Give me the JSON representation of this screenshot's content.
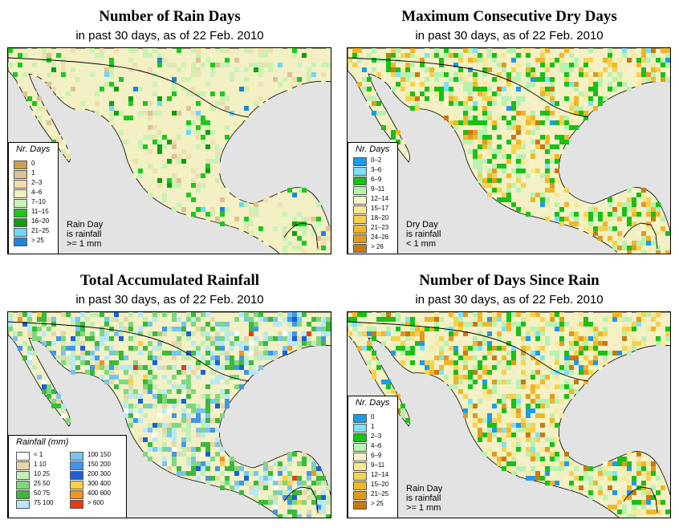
{
  "colors": {
    "background": "#e3e3e3",
    "land_base": "#f2f0c4",
    "border": "#000000"
  },
  "panels": [
    {
      "title": "Number of Rain Days",
      "subtitle": "in past 30 days, as of  22 Feb. 2010",
      "legend": {
        "title": "Nr. Days",
        "items": [
          {
            "label": "0",
            "color": "#c8a24a"
          },
          {
            "label": "1",
            "color": "#dcc294"
          },
          {
            "label": "2–3",
            "color": "#efdeb0"
          },
          {
            "label": "4–6",
            "color": "#f3f0c2"
          },
          {
            "label": "7–10",
            "color": "#c9f2b4"
          },
          {
            "label": "11–15",
            "color": "#1ec71e"
          },
          {
            "label": "16–20",
            "color": "#109e10"
          },
          {
            "label": "21–25",
            "color": "#70d6f5"
          },
          {
            "label": "> 25",
            "color": "#1e86d6"
          }
        ]
      },
      "note": [
        "Rain Day",
        "is rainfall",
        ">= 1 mm"
      ]
    },
    {
      "title": "Maximum Consecutive Dry Days",
      "subtitle": "in past 30 days, as of  22 Feb. 2010",
      "legend": {
        "title": "Nr. Days",
        "items": [
          {
            "label": "0–2",
            "color": "#1e9be8"
          },
          {
            "label": "3–6",
            "color": "#7ee1f7"
          },
          {
            "label": "6–9",
            "color": "#18c018"
          },
          {
            "label": "9–11",
            "color": "#b8f2b0"
          },
          {
            "label": "12–14",
            "color": "#f7f3c8"
          },
          {
            "label": "15–17",
            "color": "#f8e898"
          },
          {
            "label": "18–20",
            "color": "#f5d24e"
          },
          {
            "label": "21–23",
            "color": "#f0b626"
          },
          {
            "label": "24–26",
            "color": "#e09a20"
          },
          {
            "label": "> 26",
            "color": "#c87a12"
          }
        ]
      },
      "note": [
        "Dry Day",
        "is rainfall",
        "< 1 mm"
      ]
    },
    {
      "title": "Total Accumulated Rainfall",
      "subtitle": "in past 30 days, as of  22 Feb. 2010",
      "legend": {
        "title": "Rainfall (mm)",
        "items": [
          {
            "label": "< 1",
            "color": "#ffffff"
          },
          {
            "label": "1    10",
            "color": "#e6d6aa"
          },
          {
            "label": "10    25",
            "color": "#c4eeb4"
          },
          {
            "label": "25    50",
            "color": "#7ed87e"
          },
          {
            "label": "50    75",
            "color": "#3cb83c"
          },
          {
            "label": "75    100",
            "color": "#b8e8f8"
          },
          {
            "label": "100    150",
            "color": "#78c4f0"
          },
          {
            "label": "150    200",
            "color": "#4296e8"
          },
          {
            "label": "200    300",
            "color": "#1e60d0"
          },
          {
            "label": "300    400",
            "color": "#f7d044"
          },
          {
            "label": "400    600",
            "color": "#f09420"
          },
          {
            "label": "> 600",
            "color": "#e83a10"
          }
        ]
      },
      "note": []
    },
    {
      "title": "Number of Days Since Rain",
      "subtitle": "in past 30 days, as of  22 Feb. 2010",
      "legend": {
        "title": "Nr. Days",
        "items": [
          {
            "label": "0",
            "color": "#1e9be8"
          },
          {
            "label": "1",
            "color": "#7ee1f7"
          },
          {
            "label": "2–3",
            "color": "#18c018"
          },
          {
            "label": "4–6",
            "color": "#b8f2b0"
          },
          {
            "label": "6–9",
            "color": "#f7f3c8"
          },
          {
            "label": "9–11",
            "color": "#f8e898"
          },
          {
            "label": "12–14",
            "color": "#f5d24e"
          },
          {
            "label": "15–20",
            "color": "#f0b626"
          },
          {
            "label": "21–25",
            "color": "#e09a20"
          },
          {
            "label": "> 25",
            "color": "#c87a12"
          }
        ]
      },
      "note": [
        "Rain Day",
        "is rainfall",
        ">= 1 mm"
      ]
    }
  ]
}
